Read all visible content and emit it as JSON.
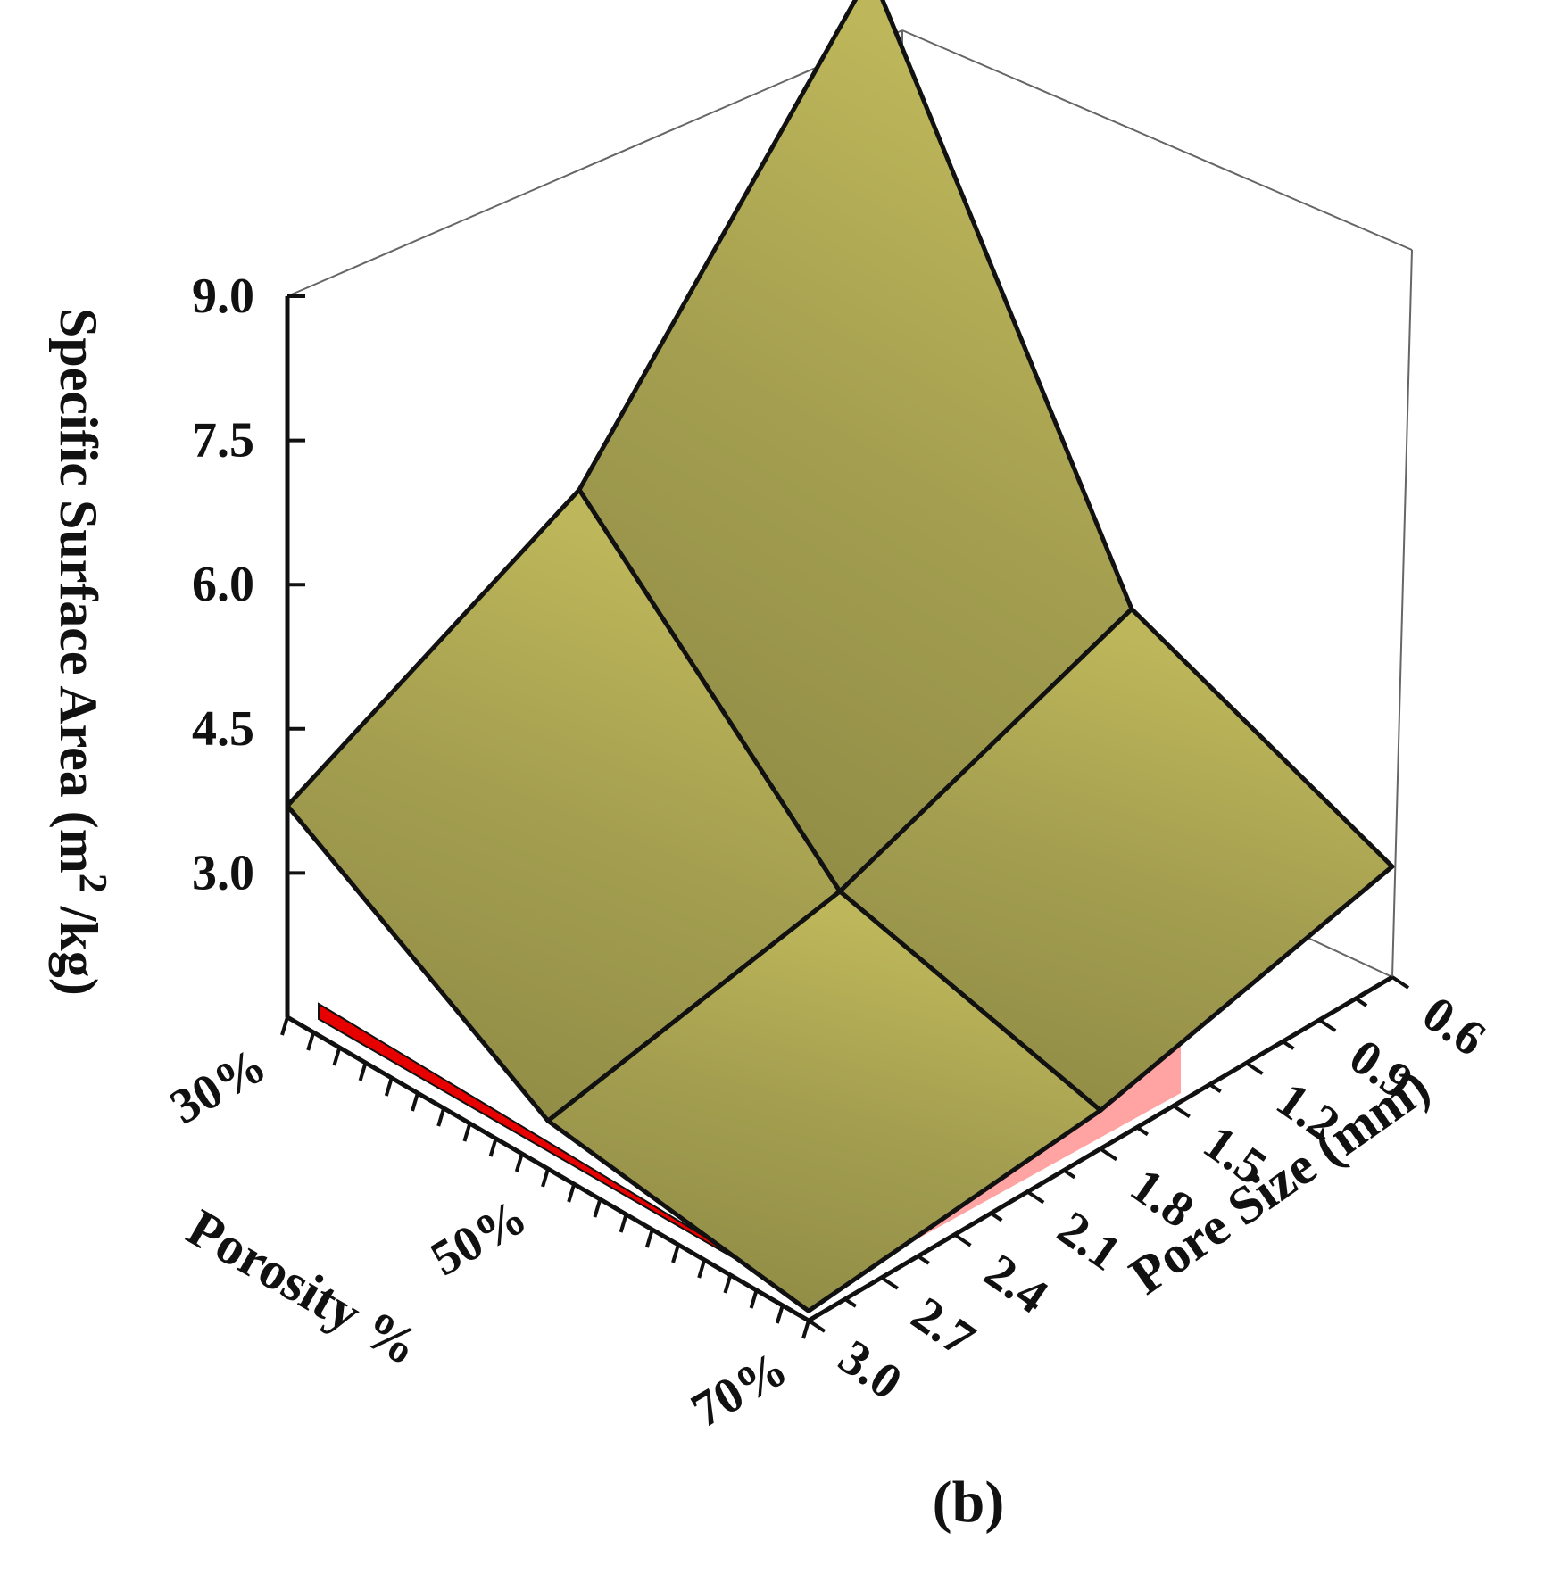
{
  "chart_data": {
    "type": "surface3d",
    "title": "",
    "panel_label": "(b)",
    "zlabel": "Specific Surface Area (m",
    "zlabel_sup": "2",
    "zlabel_end": " /kg)",
    "xlabel": "Porosity %",
    "ylabel": "Pore Size (mm)",
    "z_ticks": [
      "9.0",
      "7.5",
      "6.0",
      "4.5",
      "3.0"
    ],
    "z_tick_values": [
      9.0,
      7.5,
      6.0,
      4.5,
      3.0
    ],
    "zlim": [
      1.5,
      9.0
    ],
    "porosity_ticks": [
      "30%",
      "50%",
      "70%"
    ],
    "pore_size_ticks": [
      "0.6",
      "0.9",
      "1.2",
      "1.5",
      "1.8",
      "2.1",
      "2.4",
      "2.7",
      "3.0"
    ],
    "porosity": [
      30,
      50,
      70
    ],
    "pore_size": [
      0.6,
      1.8,
      3.0
    ],
    "z": [
      [
        8.8,
        3.75,
        2.65
      ],
      [
        5.2,
        2.6,
        1.9
      ],
      [
        3.7,
        2.0,
        1.6
      ]
    ],
    "colors": {
      "surface_top": "#bdb65a",
      "surface_mid": "#a29d4f",
      "surface_low": "#8c8843",
      "side_porosity": "#e60000",
      "side_pore": "#ffa3a3",
      "grid_line": "#111111",
      "box_line": "#666666"
    }
  }
}
